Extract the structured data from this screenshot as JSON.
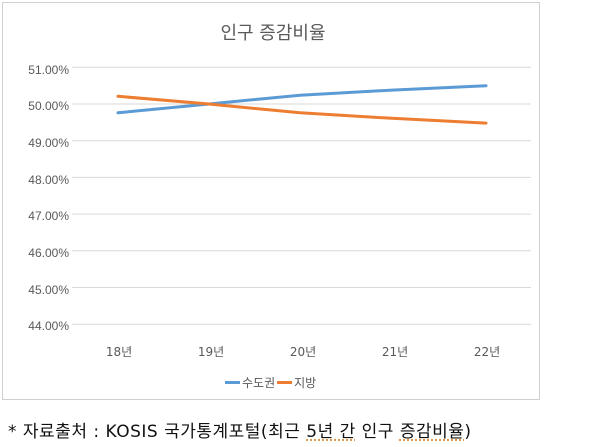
{
  "chart_data": {
    "type": "line",
    "title": "인구 증감비율",
    "xlabel": "",
    "ylabel": "",
    "categories": [
      "18년",
      "19년",
      "20년",
      "21년",
      "22년"
    ],
    "series": [
      {
        "name": "수도권",
        "color": "#5B9BD5",
        "values": [
          49.76,
          50.0,
          50.24,
          50.38,
          50.5
        ]
      },
      {
        "name": "지방",
        "color": "#ED7D31",
        "values": [
          50.21,
          50.0,
          49.76,
          49.61,
          49.48
        ]
      }
    ],
    "yticks": [
      "51.00%",
      "50.00%",
      "49.00%",
      "48.00%",
      "47.00%",
      "46.00%",
      "45.00%",
      "44.00%"
    ],
    "ylim": [
      44,
      51
    ],
    "grid": true,
    "legend_position": "bottom"
  },
  "caption": {
    "prefix": "* 자료출처 : KOSIS 국가통계포털(최근 ",
    "spell1": "5년 간",
    "mid": " 인구 ",
    "spell2": "증감비율",
    "suffix": ")"
  }
}
